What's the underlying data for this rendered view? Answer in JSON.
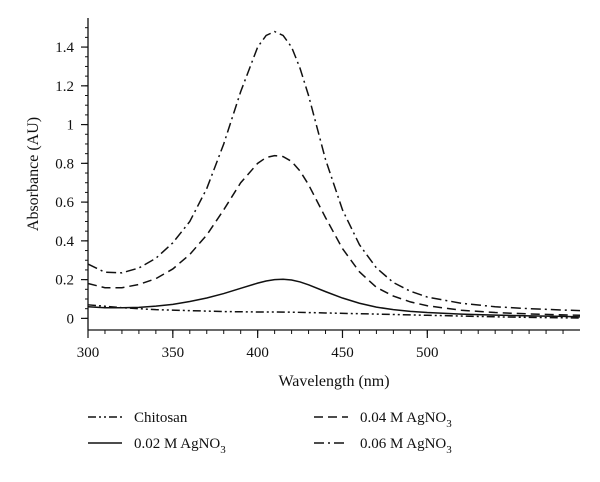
{
  "chart_data": {
    "type": "line",
    "xlabel": "Wavelength (nm)",
    "ylabel": "Absorbance (AU)",
    "xlim": [
      300,
      590
    ],
    "ylim": [
      -0.06,
      1.55
    ],
    "x_ticks": [
      300,
      350,
      400,
      450,
      500
    ],
    "x_tick_labels": [
      "300",
      "350",
      "400",
      "450",
      "500"
    ],
    "y_ticks": [
      0,
      0.2,
      0.4,
      0.6,
      0.8,
      1,
      1.2,
      1.4
    ],
    "y_tick_labels": [
      "0",
      "0.2",
      "0.4",
      "0.6",
      "0.8",
      "1",
      "1.2",
      "1.4"
    ],
    "grid": false,
    "legend_position": "bottom",
    "series": [
      {
        "name": "Chitosan",
        "label_main": "Chitosan",
        "label_sub": "",
        "dash": "dash-dot-dot",
        "color": "#111111",
        "x": [
          300,
          320,
          340,
          360,
          380,
          400,
          410,
          420,
          440,
          460,
          480,
          500,
          520,
          540,
          560,
          580,
          590
        ],
        "y": [
          0.07,
          0.055,
          0.045,
          0.04,
          0.035,
          0.033,
          0.033,
          0.032,
          0.028,
          0.024,
          0.02,
          0.016,
          0.012,
          0.008,
          0.005,
          0.003,
          0.002
        ]
      },
      {
        "name": "0.02 M AgNO3",
        "label_main": "0.02 M AgNO",
        "label_sub": "3",
        "dash": "solid",
        "color": "#111111",
        "x": [
          300,
          310,
          320,
          330,
          340,
          350,
          360,
          370,
          380,
          390,
          400,
          405,
          410,
          415,
          420,
          425,
          430,
          440,
          450,
          460,
          470,
          480,
          490,
          500,
          520,
          540,
          560,
          580,
          590
        ],
        "y": [
          0.06,
          0.055,
          0.055,
          0.057,
          0.063,
          0.072,
          0.087,
          0.105,
          0.128,
          0.155,
          0.182,
          0.193,
          0.2,
          0.202,
          0.198,
          0.188,
          0.173,
          0.138,
          0.105,
          0.078,
          0.058,
          0.045,
          0.036,
          0.03,
          0.022,
          0.017,
          0.013,
          0.01,
          0.008
        ]
      },
      {
        "name": "0.04 M AgNO3",
        "label_main": "0.04 M AgNO",
        "label_sub": "3",
        "dash": "dashed",
        "color": "#111111",
        "x": [
          300,
          310,
          320,
          330,
          340,
          350,
          360,
          370,
          380,
          390,
          400,
          405,
          410,
          415,
          420,
          425,
          430,
          440,
          450,
          460,
          470,
          480,
          490,
          500,
          520,
          540,
          560,
          580,
          590
        ],
        "y": [
          0.18,
          0.158,
          0.158,
          0.175,
          0.205,
          0.255,
          0.33,
          0.43,
          0.56,
          0.7,
          0.8,
          0.83,
          0.84,
          0.835,
          0.81,
          0.76,
          0.69,
          0.52,
          0.36,
          0.24,
          0.16,
          0.115,
          0.085,
          0.065,
          0.042,
          0.03,
          0.023,
          0.018,
          0.016
        ]
      },
      {
        "name": "0.06 M AgNO3",
        "label_main": "0.06 M AgNO",
        "label_sub": "3",
        "dash": "dash-dot",
        "color": "#111111",
        "x": [
          300,
          310,
          320,
          330,
          340,
          350,
          360,
          370,
          380,
          390,
          400,
          405,
          410,
          415,
          420,
          425,
          430,
          440,
          450,
          460,
          470,
          480,
          490,
          500,
          520,
          540,
          560,
          580,
          590
        ],
        "y": [
          0.28,
          0.238,
          0.235,
          0.26,
          0.31,
          0.39,
          0.5,
          0.67,
          0.9,
          1.17,
          1.4,
          1.46,
          1.48,
          1.46,
          1.4,
          1.29,
          1.15,
          0.82,
          0.56,
          0.38,
          0.26,
          0.185,
          0.14,
          0.11,
          0.078,
          0.06,
          0.05,
          0.043,
          0.04
        ]
      }
    ]
  }
}
